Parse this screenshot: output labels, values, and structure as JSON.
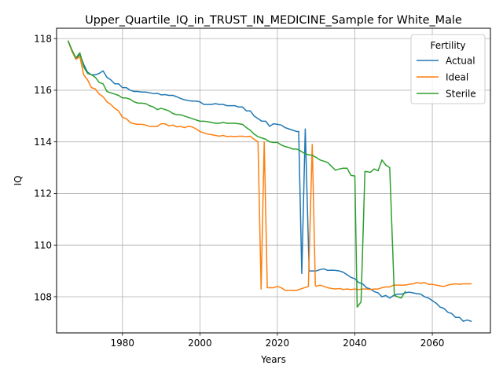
{
  "chart_data": {
    "type": "line",
    "title": "Upper_Quartile_IQ_in_TRUST_IN_MEDICINE_Sample for White_Male",
    "xlabel": "Years",
    "ylabel": "IQ",
    "xlim": [
      1963,
      2075
    ],
    "ylim": [
      106.6,
      118.4
    ],
    "x_ticks": [
      1980,
      2000,
      2020,
      2040,
      2060
    ],
    "y_ticks": [
      108,
      110,
      112,
      114,
      116,
      118
    ],
    "grid": true,
    "legend": {
      "title": "Fertility",
      "placement": "upper right"
    },
    "series": [
      {
        "name": "Actual",
        "color": "#1f77b4",
        "points": [
          [
            1966,
            117.9
          ],
          [
            1967,
            117.5
          ],
          [
            1968,
            117.2
          ],
          [
            1969,
            117.4
          ],
          [
            1970,
            117.0
          ],
          [
            1971,
            116.7
          ],
          [
            1972,
            116.6
          ],
          [
            1973,
            116.6
          ],
          [
            1974,
            116.65
          ],
          [
            1975,
            116.75
          ],
          [
            1976,
            116.5
          ],
          [
            1977,
            116.4
          ],
          [
            1978,
            116.25
          ],
          [
            1979,
            116.25
          ],
          [
            1980,
            116.1
          ],
          [
            1981,
            116.1
          ],
          [
            1982,
            116.0
          ],
          [
            1983,
            115.95
          ],
          [
            1984,
            115.95
          ],
          [
            1985,
            115.93
          ],
          [
            1986,
            115.93
          ],
          [
            1987,
            115.9
          ],
          [
            1988,
            115.87
          ],
          [
            1989,
            115.88
          ],
          [
            1990,
            115.82
          ],
          [
            1991,
            115.83
          ],
          [
            1992,
            115.8
          ],
          [
            1993,
            115.8
          ],
          [
            1994,
            115.75
          ],
          [
            1995,
            115.68
          ],
          [
            1996,
            115.63
          ],
          [
            1997,
            115.6
          ],
          [
            1998,
            115.58
          ],
          [
            1999,
            115.58
          ],
          [
            2000,
            115.55
          ],
          [
            2001,
            115.45
          ],
          [
            2002,
            115.45
          ],
          [
            2003,
            115.45
          ],
          [
            2004,
            115.48
          ],
          [
            2005,
            115.45
          ],
          [
            2006,
            115.45
          ],
          [
            2007,
            115.4
          ],
          [
            2008,
            115.4
          ],
          [
            2009,
            115.4
          ],
          [
            2010,
            115.35
          ],
          [
            2011,
            115.35
          ],
          [
            2012,
            115.2
          ],
          [
            2013,
            115.2
          ],
          [
            2014,
            115.0
          ],
          [
            2015,
            114.9
          ],
          [
            2016,
            114.8
          ],
          [
            2017,
            114.8
          ],
          [
            2018,
            114.6
          ],
          [
            2019,
            114.7
          ],
          [
            2020,
            114.68
          ],
          [
            2021,
            114.65
          ],
          [
            2022,
            114.55
          ],
          [
            2023,
            114.5
          ],
          [
            2024,
            114.45
          ],
          [
            2025,
            114.4
          ],
          [
            2025.5,
            114.4
          ],
          [
            2026.3,
            108.9
          ],
          [
            2027.2,
            114.5
          ],
          [
            2028.2,
            109.0
          ],
          [
            2029,
            109.0
          ],
          [
            2030,
            109.0
          ],
          [
            2031,
            109.05
          ],
          [
            2032,
            109.08
          ],
          [
            2033,
            109.02
          ],
          [
            2034,
            109.03
          ],
          [
            2035,
            109.02
          ],
          [
            2036,
            109.0
          ],
          [
            2037,
            108.95
          ],
          [
            2038,
            108.85
          ],
          [
            2039,
            108.75
          ],
          [
            2040,
            108.7
          ],
          [
            2041,
            108.55
          ],
          [
            2042,
            108.5
          ],
          [
            2043,
            108.35
          ],
          [
            2044,
            108.3
          ],
          [
            2045,
            108.2
          ],
          [
            2046,
            108.15
          ],
          [
            2047,
            108.0
          ],
          [
            2048,
            108.05
          ],
          [
            2049,
            107.95
          ],
          [
            2050,
            108.05
          ],
          [
            2051,
            108.1
          ],
          [
            2052,
            108.1
          ],
          [
            2053,
            108.15
          ],
          [
            2054,
            108.18
          ],
          [
            2055,
            108.15
          ],
          [
            2056,
            108.12
          ],
          [
            2057,
            108.1
          ],
          [
            2058,
            108.0
          ],
          [
            2059,
            107.95
          ],
          [
            2060,
            107.85
          ],
          [
            2061,
            107.75
          ],
          [
            2062,
            107.6
          ],
          [
            2063,
            107.55
          ],
          [
            2064,
            107.4
          ],
          [
            2065,
            107.35
          ],
          [
            2066,
            107.2
          ],
          [
            2067,
            107.2
          ],
          [
            2068,
            107.05
          ],
          [
            2069,
            107.1
          ],
          [
            2070,
            107.05
          ]
        ]
      },
      {
        "name": "Ideal",
        "color": "#ff7f0e",
        "points": [
          [
            1966,
            117.9
          ],
          [
            1967,
            117.5
          ],
          [
            1968,
            117.2
          ],
          [
            1969,
            117.3
          ],
          [
            1970,
            116.6
          ],
          [
            1971,
            116.4
          ],
          [
            1972,
            116.1
          ],
          [
            1973,
            116.05
          ],
          [
            1974,
            115.85
          ],
          [
            1975,
            115.75
          ],
          [
            1976,
            115.55
          ],
          [
            1977,
            115.45
          ],
          [
            1978,
            115.3
          ],
          [
            1979,
            115.2
          ],
          [
            1980,
            114.95
          ],
          [
            1981,
            114.9
          ],
          [
            1982,
            114.75
          ],
          [
            1983,
            114.7
          ],
          [
            1984,
            114.68
          ],
          [
            1985,
            114.68
          ],
          [
            1986,
            114.65
          ],
          [
            1987,
            114.6
          ],
          [
            1988,
            114.6
          ],
          [
            1989,
            114.6
          ],
          [
            1990,
            114.7
          ],
          [
            1991,
            114.7
          ],
          [
            1992,
            114.62
          ],
          [
            1993,
            114.65
          ],
          [
            1994,
            114.58
          ],
          [
            1995,
            114.6
          ],
          [
            1996,
            114.55
          ],
          [
            1997,
            114.6
          ],
          [
            1998,
            114.58
          ],
          [
            1999,
            114.5
          ],
          [
            2000,
            114.4
          ],
          [
            2001,
            114.35
          ],
          [
            2002,
            114.3
          ],
          [
            2003,
            114.28
          ],
          [
            2004,
            114.25
          ],
          [
            2005,
            114.22
          ],
          [
            2006,
            114.25
          ],
          [
            2007,
            114.2
          ],
          [
            2008,
            114.22
          ],
          [
            2009,
            114.2
          ],
          [
            2010,
            114.22
          ],
          [
            2011,
            114.22
          ],
          [
            2012,
            114.2
          ],
          [
            2013,
            114.22
          ],
          [
            2014,
            114.1
          ],
          [
            2015,
            114.0
          ],
          [
            2015.8,
            108.3
          ],
          [
            2016.6,
            114.0
          ],
          [
            2017.4,
            108.35
          ],
          [
            2018,
            108.35
          ],
          [
            2019,
            108.35
          ],
          [
            2020,
            108.4
          ],
          [
            2021,
            108.35
          ],
          [
            2022,
            108.25
          ],
          [
            2023,
            108.25
          ],
          [
            2024,
            108.25
          ],
          [
            2025,
            108.25
          ],
          [
            2026,
            108.3
          ],
          [
            2027,
            108.35
          ],
          [
            2028,
            108.4
          ],
          [
            2029,
            113.9
          ],
          [
            2029.8,
            108.45
          ],
          [
            2030,
            108.4
          ],
          [
            2031,
            108.45
          ],
          [
            2032,
            108.4
          ],
          [
            2033,
            108.35
          ],
          [
            2034,
            108.32
          ],
          [
            2035,
            108.3
          ],
          [
            2036,
            108.32
          ],
          [
            2037,
            108.28
          ],
          [
            2038,
            108.3
          ],
          [
            2039,
            108.28
          ],
          [
            2040,
            108.3
          ],
          [
            2041,
            108.28
          ],
          [
            2042,
            108.3
          ],
          [
            2043,
            108.3
          ],
          [
            2044,
            108.28
          ],
          [
            2045,
            108.3
          ],
          [
            2046,
            108.3
          ],
          [
            2047,
            108.35
          ],
          [
            2048,
            108.38
          ],
          [
            2049,
            108.38
          ],
          [
            2050,
            108.45
          ],
          [
            2051,
            108.45
          ],
          [
            2052,
            108.45
          ],
          [
            2053,
            108.45
          ],
          [
            2054,
            108.48
          ],
          [
            2055,
            108.5
          ],
          [
            2056,
            108.55
          ],
          [
            2057,
            108.52
          ],
          [
            2058,
            108.55
          ],
          [
            2059,
            108.48
          ],
          [
            2060,
            108.48
          ],
          [
            2061,
            108.45
          ],
          [
            2062,
            108.42
          ],
          [
            2063,
            108.4
          ],
          [
            2064,
            108.45
          ],
          [
            2065,
            108.48
          ],
          [
            2066,
            108.5
          ],
          [
            2067,
            108.48
          ],
          [
            2068,
            108.5
          ],
          [
            2069,
            108.5
          ],
          [
            2070,
            108.5
          ]
        ]
      },
      {
        "name": "Sterile",
        "color": "#2ca02c",
        "points": [
          [
            1966,
            117.9
          ],
          [
            1967,
            117.55
          ],
          [
            1968,
            117.25
          ],
          [
            1969,
            117.45
          ],
          [
            1970,
            116.9
          ],
          [
            1971,
            116.65
          ],
          [
            1972,
            116.6
          ],
          [
            1973,
            116.5
          ],
          [
            1974,
            116.3
          ],
          [
            1975,
            116.25
          ],
          [
            1976,
            115.95
          ],
          [
            1977,
            115.9
          ],
          [
            1978,
            115.85
          ],
          [
            1979,
            115.8
          ],
          [
            1980,
            115.7
          ],
          [
            1981,
            115.7
          ],
          [
            1982,
            115.65
          ],
          [
            1983,
            115.55
          ],
          [
            1984,
            115.5
          ],
          [
            1985,
            115.5
          ],
          [
            1986,
            115.48
          ],
          [
            1987,
            115.4
          ],
          [
            1988,
            115.35
          ],
          [
            1989,
            115.25
          ],
          [
            1990,
            115.3
          ],
          [
            1991,
            115.25
          ],
          [
            1992,
            115.2
          ],
          [
            1993,
            115.1
          ],
          [
            1994,
            115.05
          ],
          [
            1995,
            115.05
          ],
          [
            1996,
            115.0
          ],
          [
            1997,
            114.95
          ],
          [
            1998,
            114.9
          ],
          [
            1999,
            114.85
          ],
          [
            2000,
            114.8
          ],
          [
            2001,
            114.8
          ],
          [
            2002,
            114.78
          ],
          [
            2003,
            114.75
          ],
          [
            2004,
            114.72
          ],
          [
            2005,
            114.72
          ],
          [
            2006,
            114.75
          ],
          [
            2007,
            114.72
          ],
          [
            2008,
            114.72
          ],
          [
            2009,
            114.72
          ],
          [
            2010,
            114.7
          ],
          [
            2011,
            114.68
          ],
          [
            2012,
            114.55
          ],
          [
            2013,
            114.45
          ],
          [
            2014,
            114.3
          ],
          [
            2015,
            114.2
          ],
          [
            2016,
            114.15
          ],
          [
            2017,
            114.1
          ],
          [
            2018,
            114.0
          ],
          [
            2019,
            113.98
          ],
          [
            2020,
            113.98
          ],
          [
            2021,
            113.88
          ],
          [
            2022,
            113.82
          ],
          [
            2023,
            113.78
          ],
          [
            2024,
            113.72
          ],
          [
            2025,
            113.72
          ],
          [
            2026,
            113.65
          ],
          [
            2027,
            113.55
          ],
          [
            2028,
            113.5
          ],
          [
            2029,
            113.48
          ],
          [
            2030,
            113.4
          ],
          [
            2031,
            113.3
          ],
          [
            2032,
            113.25
          ],
          [
            2033,
            113.2
          ],
          [
            2034,
            113.05
          ],
          [
            2035,
            112.9
          ],
          [
            2036,
            112.95
          ],
          [
            2037,
            112.98
          ],
          [
            2038,
            112.98
          ],
          [
            2039,
            112.7
          ],
          [
            2040,
            112.68
          ],
          [
            2040.6,
            107.6
          ],
          [
            2041.6,
            107.8
          ],
          [
            2042.6,
            112.85
          ],
          [
            2043,
            112.85
          ],
          [
            2044,
            112.82
          ],
          [
            2045,
            112.95
          ],
          [
            2046,
            112.88
          ],
          [
            2047,
            113.3
          ],
          [
            2048,
            113.1
          ],
          [
            2049,
            113.0
          ],
          [
            2050.2,
            108.05
          ],
          [
            2051,
            108.0
          ],
          [
            2052,
            107.95
          ],
          [
            2053,
            108.2
          ]
        ]
      }
    ]
  }
}
